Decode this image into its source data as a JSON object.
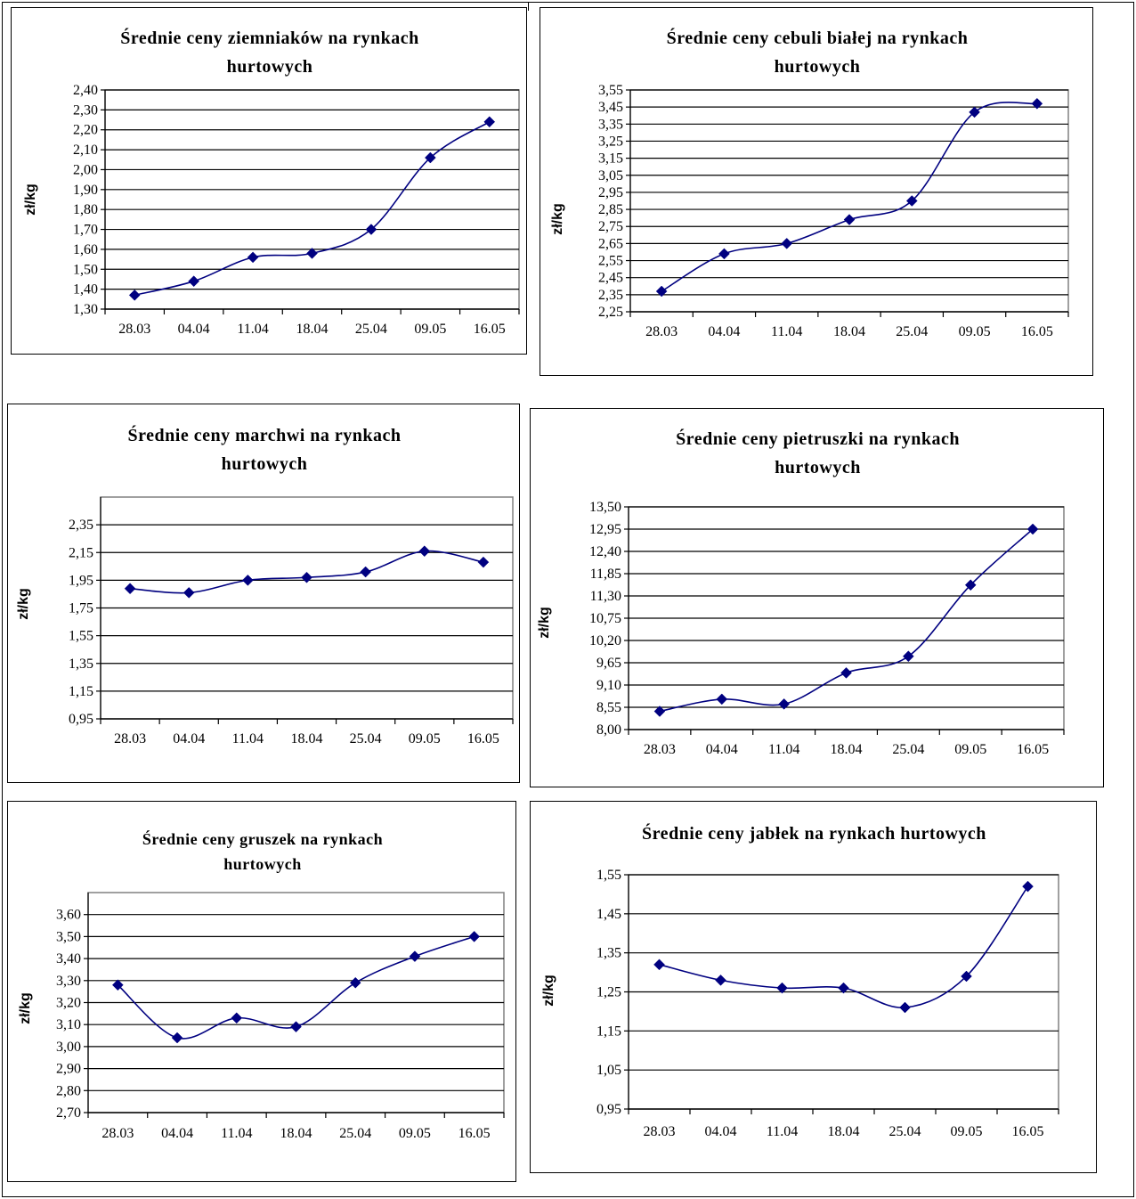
{
  "colors": {
    "series": "#000080",
    "axis": "#808080",
    "grid": "#000000"
  },
  "chart_data": [
    {
      "type": "line",
      "title_lines": [
        "Średnie ceny ziemniaków  na rynkach",
        "hurtowych"
      ],
      "ylabel": "zł/kg",
      "categories": [
        "28.03",
        "04.04",
        "11.04",
        "18.04",
        "25.04",
        "09.05",
        "16.05"
      ],
      "yticks": [
        "1,30",
        "1,40",
        "1,50",
        "1,60",
        "1,70",
        "1,80",
        "1,90",
        "2,00",
        "2,10",
        "2,20",
        "2,30",
        "2,40"
      ],
      "ylim": [
        1.3,
        2.4
      ],
      "values": [
        1.37,
        1.44,
        1.56,
        1.58,
        1.7,
        2.06,
        2.24
      ],
      "grid": true,
      "marker": "diamond"
    },
    {
      "type": "line",
      "title_lines": [
        "Średnie ceny cebuli białej na rynkach",
        "hurtowych"
      ],
      "ylabel": "zł/kg",
      "categories": [
        "28.03",
        "04.04",
        "11.04",
        "18.04",
        "25.04",
        "09.05",
        "16.05"
      ],
      "yticks": [
        "2,25",
        "2,35",
        "2,45",
        "2,55",
        "2,65",
        "2,75",
        "2,85",
        "2,95",
        "3,05",
        "3,15",
        "3,25",
        "3,35",
        "3,45",
        "3,55"
      ],
      "ylim": [
        2.25,
        3.55
      ],
      "values": [
        2.37,
        2.59,
        2.65,
        2.79,
        2.9,
        3.42,
        3.47
      ],
      "grid": true,
      "marker": "diamond"
    },
    {
      "type": "line",
      "title_lines": [
        "Średnie ceny marchwi  na rynkach",
        "hurtowych"
      ],
      "ylabel": "zł/kg",
      "categories": [
        "28.03",
        "04.04",
        "11.04",
        "18.04",
        "25.04",
        "09.05",
        "16.05"
      ],
      "yticks": [
        "0,95",
        "1,15",
        "1,35",
        "1,55",
        "1,75",
        "1,95",
        "2,15",
        "2,35"
      ],
      "ylim": [
        0.95,
        2.55
      ],
      "values": [
        1.89,
        1.86,
        1.95,
        1.97,
        2.01,
        2.16,
        2.08
      ],
      "grid": true,
      "marker": "diamond"
    },
    {
      "type": "line",
      "title_lines": [
        "Średnie ceny pietruszki na rynkach",
        "hurtowych"
      ],
      "ylabel": "zł/kg",
      "categories": [
        "28.03",
        "04.04",
        "11.04",
        "18.04",
        "25.04",
        "09.05",
        "16.05"
      ],
      "yticks": [
        "8,00",
        "8,55",
        "9,10",
        "9,65",
        "10,20",
        "10,75",
        "11,30",
        "11,85",
        "12,40",
        "12,95",
        "13,50"
      ],
      "ylim": [
        8.0,
        13.5
      ],
      "values": [
        8.45,
        8.75,
        8.63,
        9.4,
        9.81,
        11.57,
        12.95
      ],
      "grid": true,
      "marker": "diamond"
    },
    {
      "type": "line",
      "title_lines": [
        "Średnie ceny gruszek na rynkach",
        "hurtowych"
      ],
      "ylabel": "zł/kg",
      "categories": [
        "28.03",
        "04.04",
        "11.04",
        "18.04",
        "25.04",
        "09.05",
        "16.05"
      ],
      "yticks": [
        "2,70",
        "2,80",
        "2,90",
        "3,00",
        "3,10",
        "3,20",
        "3,30",
        "3,40",
        "3,50",
        "3,60"
      ],
      "ylim": [
        2.7,
        3.7
      ],
      "values": [
        3.28,
        3.04,
        3.13,
        3.09,
        3.29,
        3.41,
        3.5
      ],
      "grid": true,
      "marker": "diamond"
    },
    {
      "type": "line",
      "title_lines": [
        "Średnie ceny jabłek  na rynkach hurtowych"
      ],
      "ylabel": "zł/kg",
      "categories": [
        "28.03",
        "04.04",
        "11.04",
        "18.04",
        "25.04",
        "09.05",
        "16.05"
      ],
      "yticks": [
        "0,95",
        "1,05",
        "1,15",
        "1,25",
        "1,35",
        "1,45",
        "1,55"
      ],
      "ylim": [
        0.95,
        1.55
      ],
      "values": [
        1.32,
        1.28,
        1.26,
        1.26,
        1.21,
        1.29,
        1.52
      ],
      "grid": true,
      "marker": "diamond"
    }
  ]
}
